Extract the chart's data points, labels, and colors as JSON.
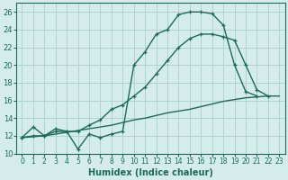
{
  "xlabel": "Humidex (Indice chaleur)",
  "bg_color": "#d4ecea",
  "grid_color": "#b0d4d0",
  "line_color": "#1a6b5a",
  "xlim": [
    -0.5,
    23.5
  ],
  "ylim": [
    10,
    27
  ],
  "xticks": [
    0,
    1,
    2,
    3,
    4,
    5,
    6,
    7,
    8,
    9,
    10,
    11,
    12,
    13,
    14,
    15,
    16,
    17,
    18,
    19,
    20,
    21,
    22,
    23
  ],
  "yticks": [
    10,
    12,
    14,
    16,
    18,
    20,
    22,
    24,
    26
  ],
  "line1_x": [
    0,
    1,
    2,
    3,
    4,
    5,
    6,
    7,
    8,
    9,
    10,
    11,
    12,
    13,
    14,
    15,
    16,
    17,
    18,
    19,
    20,
    21
  ],
  "line1_y": [
    11.8,
    13.0,
    12.0,
    12.8,
    12.5,
    10.5,
    12.2,
    11.8,
    12.2,
    12.5,
    20.0,
    21.5,
    23.5,
    24.0,
    25.7,
    26.0,
    26.0,
    25.8,
    24.5,
    20.0,
    17.0,
    16.5
  ],
  "line2_x": [
    0,
    1,
    2,
    3,
    4,
    5,
    6,
    7,
    8,
    9,
    10,
    11,
    12,
    13,
    14,
    15,
    16,
    17,
    18,
    19,
    20,
    21,
    22
  ],
  "line2_y": [
    11.8,
    12.0,
    12.0,
    12.5,
    12.5,
    12.5,
    13.2,
    13.8,
    15.0,
    15.5,
    16.5,
    17.5,
    19.0,
    20.5,
    22.0,
    23.0,
    23.5,
    23.5,
    23.2,
    22.8,
    20.0,
    17.2,
    16.5
  ],
  "line3_x": [
    0,
    1,
    2,
    3,
    4,
    5,
    6,
    7,
    8,
    9,
    10,
    11,
    12,
    13,
    14,
    15,
    16,
    17,
    18,
    19,
    20,
    21,
    22,
    23
  ],
  "line3_y": [
    11.8,
    11.9,
    12.0,
    12.2,
    12.4,
    12.6,
    12.8,
    13.0,
    13.2,
    13.5,
    13.8,
    14.0,
    14.3,
    14.6,
    14.8,
    15.0,
    15.3,
    15.6,
    15.9,
    16.1,
    16.3,
    16.4,
    16.5,
    16.5
  ]
}
